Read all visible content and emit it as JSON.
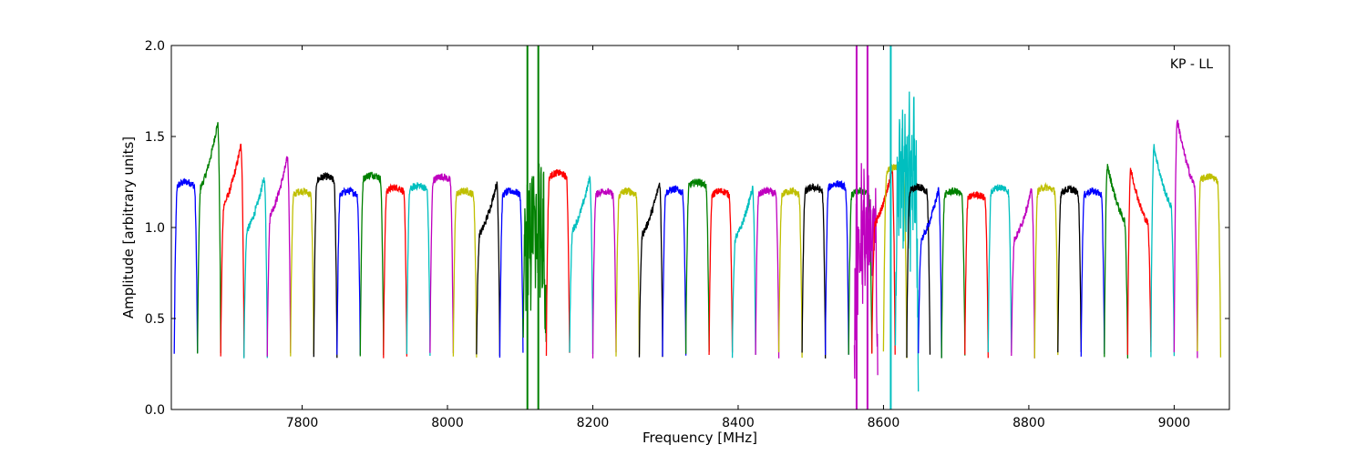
{
  "chart_data": {
    "type": "line",
    "title": "",
    "annotation": "KP - LL",
    "xlabel": "Frequency [MHz]",
    "ylabel": "Amplitude [arbitrary units]",
    "xlim": [
      7620,
      9076
    ],
    "ylim": [
      0.0,
      2.0
    ],
    "xticks": [
      7800,
      8000,
      8200,
      8400,
      8600,
      8800,
      9000
    ],
    "yticks": [
      0.0,
      0.5,
      1.0,
      1.5,
      2.0
    ],
    "xtick_labels": [
      "7800",
      "8000",
      "8200",
      "8400",
      "8600",
      "8800",
      "9000"
    ],
    "ytick_labels": [
      "0.0",
      "0.5",
      "1.0",
      "1.5",
      "2.0"
    ],
    "grid": false,
    "band_width_mhz": 32,
    "colors": [
      "#0000ff",
      "#008000",
      "#ff0000",
      "#00bfbf",
      "#bf00bf",
      "#bfbf00",
      "#000000"
    ],
    "bands": [
      {
        "start": 7624,
        "peak": 1.25,
        "shape": "flat",
        "color": "#0000ff"
      },
      {
        "start": 7656,
        "peak": 1.67,
        "shape": "rise",
        "color": "#008000"
      },
      {
        "start": 7688,
        "peak": 1.54,
        "shape": "rise",
        "color": "#ff0000"
      },
      {
        "start": 7720,
        "peak": 1.35,
        "shape": "rise",
        "color": "#00bfbf"
      },
      {
        "start": 7752,
        "peak": 1.47,
        "shape": "rise",
        "color": "#bf00bf"
      },
      {
        "start": 7784,
        "peak": 1.2,
        "shape": "flat",
        "color": "#bfbf00"
      },
      {
        "start": 7816,
        "peak": 1.28,
        "shape": "flat",
        "color": "#000000"
      },
      {
        "start": 7848,
        "peak": 1.2,
        "shape": "flat",
        "color": "#0000ff"
      },
      {
        "start": 7880,
        "peak": 1.29,
        "shape": "flat",
        "color": "#008000"
      },
      {
        "start": 7912,
        "peak": 1.22,
        "shape": "flat",
        "color": "#ff0000"
      },
      {
        "start": 7944,
        "peak": 1.23,
        "shape": "flat",
        "color": "#00bfbf"
      },
      {
        "start": 7976,
        "peak": 1.28,
        "shape": "flat",
        "color": "#bf00bf"
      },
      {
        "start": 8008,
        "peak": 1.2,
        "shape": "flat",
        "color": "#bfbf00"
      },
      {
        "start": 8040,
        "peak": 1.32,
        "shape": "rise",
        "color": "#000000"
      },
      {
        "start": 8072,
        "peak": 1.2,
        "shape": "flat",
        "color": "#0000ff"
      },
      {
        "start": 8104,
        "peak": 1.1,
        "shape": "noisy",
        "color": "#008000"
      },
      {
        "start": 8136,
        "peak": 1.3,
        "shape": "flat",
        "color": "#ff0000"
      },
      {
        "start": 8168,
        "peak": 1.35,
        "shape": "rise",
        "color": "#00bfbf"
      },
      {
        "start": 8200,
        "peak": 1.2,
        "shape": "flat",
        "color": "#bf00bf"
      },
      {
        "start": 8232,
        "peak": 1.2,
        "shape": "flat",
        "color": "#bfbf00"
      },
      {
        "start": 8264,
        "peak": 1.32,
        "shape": "rise",
        "color": "#000000"
      },
      {
        "start": 8296,
        "peak": 1.21,
        "shape": "flat",
        "color": "#0000ff"
      },
      {
        "start": 8328,
        "peak": 1.25,
        "shape": "flat",
        "color": "#008000"
      },
      {
        "start": 8360,
        "peak": 1.2,
        "shape": "flat",
        "color": "#ff0000"
      },
      {
        "start": 8392,
        "peak": 1.29,
        "shape": "rise",
        "color": "#00bfbf"
      },
      {
        "start": 8424,
        "peak": 1.2,
        "shape": "flat",
        "color": "#bf00bf"
      },
      {
        "start": 8456,
        "peak": 1.2,
        "shape": "flat",
        "color": "#bfbf00"
      },
      {
        "start": 8488,
        "peak": 1.22,
        "shape": "flat",
        "color": "#000000"
      },
      {
        "start": 8520,
        "peak": 1.24,
        "shape": "flat",
        "color": "#0000ff"
      },
      {
        "start": 8552,
        "peak": 1.2,
        "shape": "flat",
        "color": "#008000"
      },
      {
        "start": 8560,
        "peak": 1.1,
        "shape": "noisy",
        "color": "#bf00bf"
      },
      {
        "start": 8584,
        "peak": 1.4,
        "shape": "rise",
        "color": "#ff0000"
      },
      {
        "start": 8600,
        "peak": 1.33,
        "shape": "flat",
        "color": "#bfbf00"
      },
      {
        "start": 8616,
        "peak": 1.5,
        "shape": "noisy",
        "color": "#00bfbf"
      },
      {
        "start": 8632,
        "peak": 1.22,
        "shape": "flat",
        "color": "#000000"
      },
      {
        "start": 8648,
        "peak": 1.28,
        "shape": "rise",
        "color": "#0000ff"
      },
      {
        "start": 8680,
        "peak": 1.2,
        "shape": "flat",
        "color": "#008000"
      },
      {
        "start": 8712,
        "peak": 1.18,
        "shape": "flat",
        "color": "#ff0000"
      },
      {
        "start": 8744,
        "peak": 1.22,
        "shape": "flat",
        "color": "#00bfbf"
      },
      {
        "start": 8776,
        "peak": 1.28,
        "shape": "rise",
        "color": "#bf00bf"
      },
      {
        "start": 8808,
        "peak": 1.22,
        "shape": "flat",
        "color": "#bfbf00"
      },
      {
        "start": 8840,
        "peak": 1.21,
        "shape": "flat",
        "color": "#000000"
      },
      {
        "start": 8872,
        "peak": 1.2,
        "shape": "flat",
        "color": "#0000ff"
      },
      {
        "start": 8904,
        "peak": 1.42,
        "shape": "fall",
        "color": "#008000"
      },
      {
        "start": 8936,
        "peak": 1.4,
        "shape": "fall",
        "color": "#ff0000"
      },
      {
        "start": 8968,
        "peak": 1.53,
        "shape": "fall",
        "color": "#00bfbf"
      },
      {
        "start": 9000,
        "peak": 1.69,
        "shape": "fall",
        "color": "#bf00bf"
      },
      {
        "start": 9032,
        "peak": 1.28,
        "shape": "flat",
        "color": "#bfbf00"
      }
    ],
    "spikes": [
      {
        "x": 8110,
        "color": "#008000"
      },
      {
        "x": 8125,
        "color": "#008000"
      },
      {
        "x": 8563,
        "color": "#bf00bf"
      },
      {
        "x": 8578,
        "color": "#bf00bf"
      },
      {
        "x": 8610,
        "color": "#00bfbf"
      }
    ]
  }
}
